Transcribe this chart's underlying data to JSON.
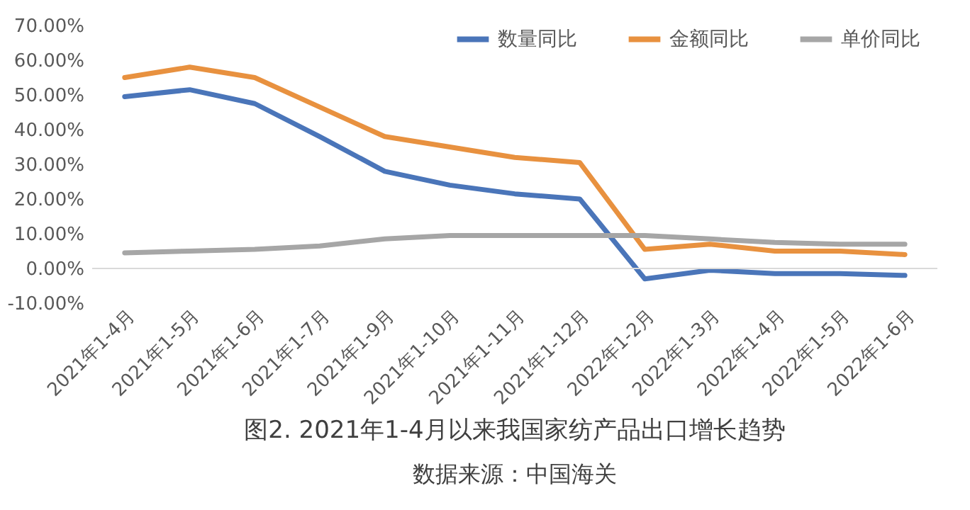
{
  "chart_data": {
    "type": "line",
    "title": "图2. 2021年1-4月以来我国家纺产品出口增长趋势",
    "annotations": [
      "数据来源：中国海关"
    ],
    "categories": [
      "2021年1-4月",
      "2021年1-5月",
      "2021年1-6月",
      "2021年1-7月",
      "2021年1-9月",
      "2021年1-10月",
      "2021年1-11月",
      "2021年1-12月",
      "2022年1-2月",
      "2022年1-3月",
      "2022年1-4月",
      "2022年1-5月",
      "2022年1-6月"
    ],
    "series": [
      {
        "name": "数量同比",
        "color": "#4a75b9",
        "values": [
          49.5,
          51.5,
          47.5,
          38,
          28,
          24,
          21.5,
          20,
          -3,
          -0.5,
          -1.5,
          -1.5,
          -2
        ]
      },
      {
        "name": "金额同比",
        "color": "#e8913f",
        "values": [
          55,
          58,
          55,
          46.5,
          38,
          35,
          32,
          30.5,
          5.5,
          7,
          5,
          5,
          4
        ]
      },
      {
        "name": "单价同比",
        "color": "#a6a6a6",
        "values": [
          4.5,
          5,
          5.5,
          6.5,
          8.5,
          9.5,
          9.5,
          9.5,
          9.5,
          8.5,
          7.5,
          7,
          7
        ]
      }
    ],
    "ylim": [
      -10,
      70
    ],
    "yticks": [
      {
        "value": -10,
        "label": "-10.00%"
      },
      {
        "value": 0,
        "label": "0.00%"
      },
      {
        "value": 10,
        "label": "10.00%"
      },
      {
        "value": 20,
        "label": "20.00%"
      },
      {
        "value": 30,
        "label": "30.00%"
      },
      {
        "value": 40,
        "label": "40.00%"
      },
      {
        "value": 50,
        "label": "50.00%"
      },
      {
        "value": 60,
        "label": "60.00%"
      },
      {
        "value": 70,
        "label": "70.00%"
      }
    ],
    "grid": false,
    "legend": "top",
    "marker": "none",
    "line_style": "solid"
  }
}
